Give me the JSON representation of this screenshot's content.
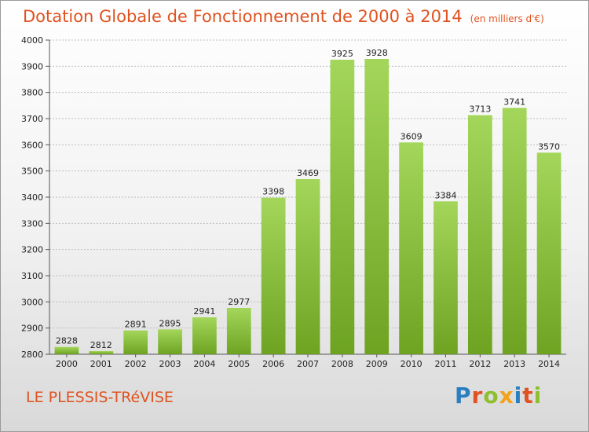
{
  "header": {
    "title": "Dotation Globale de Fonctionnement de 2000 à 2014",
    "unit": "(en milliers d'€)"
  },
  "footer": {
    "place": "LE PLESSIS-TRéVISE",
    "logo_text": "Proxiti",
    "logo_colors": [
      "#2a7fc1",
      "#e0521f",
      "#8dbf2e",
      "#f2a31b",
      "#2a7fc1",
      "#e0521f",
      "#8dbf2e"
    ]
  },
  "colors": {
    "title": "#e0521f",
    "bar_light": "#a3d65a",
    "bar_dark": "#6ea322",
    "grid": "#bdbdbd"
  },
  "chart_data": {
    "type": "bar",
    "title": "Dotation Globale de Fonctionnement de 2000 à 2014",
    "subtitle": "(en milliers d'€)",
    "categories": [
      "2000",
      "2001",
      "2002",
      "2003",
      "2004",
      "2005",
      "2006",
      "2007",
      "2008",
      "2009",
      "2010",
      "2011",
      "2012",
      "2013",
      "2014"
    ],
    "values": [
      2828,
      2812,
      2891,
      2895,
      2941,
      2977,
      3398,
      3469,
      3925,
      3928,
      3609,
      3384,
      3713,
      3741,
      3570
    ],
    "ylim": [
      2800,
      4000
    ],
    "yticks": [
      2800,
      2900,
      3000,
      3100,
      3200,
      3300,
      3400,
      3500,
      3600,
      3700,
      3800,
      3900,
      4000
    ],
    "grid": true,
    "grid_style": "dashed"
  }
}
